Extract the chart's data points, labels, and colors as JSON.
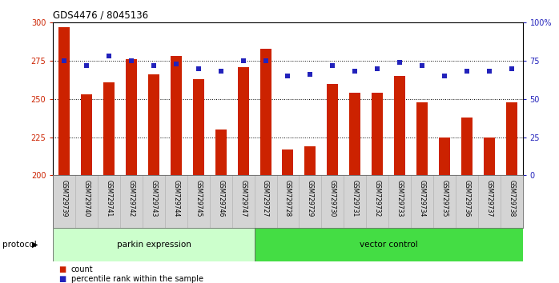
{
  "title": "GDS4476 / 8045136",
  "samples": [
    "GSM729739",
    "GSM729740",
    "GSM729741",
    "GSM729742",
    "GSM729743",
    "GSM729744",
    "GSM729745",
    "GSM729746",
    "GSM729747",
    "GSM729727",
    "GSM729728",
    "GSM729729",
    "GSM729730",
    "GSM729731",
    "GSM729732",
    "GSM729733",
    "GSM729734",
    "GSM729735",
    "GSM729736",
    "GSM729737",
    "GSM729738"
  ],
  "bar_values": [
    297,
    253,
    261,
    276,
    266,
    278,
    263,
    230,
    271,
    283,
    217,
    219,
    260,
    254,
    254,
    265,
    248,
    225,
    238,
    225,
    248
  ],
  "dot_values": [
    75,
    72,
    78,
    75,
    72,
    73,
    70,
    68,
    75,
    75,
    65,
    66,
    72,
    68,
    70,
    74,
    72,
    65,
    68,
    68,
    70
  ],
  "bar_color": "#cc2200",
  "dot_color": "#2222bb",
  "ylim_left": [
    200,
    300
  ],
  "ylim_right": [
    0,
    100
  ],
  "yticks_left": [
    200,
    225,
    250,
    275,
    300
  ],
  "yticks_right": [
    0,
    25,
    50,
    75,
    100
  ],
  "ytick_labels_right": [
    "0",
    "25",
    "50",
    "75",
    "100%"
  ],
  "group1_label": "parkin expression",
  "group2_label": "vector control",
  "group1_color": "#ccffcc",
  "group2_color": "#44dd44",
  "protocol_label": "protocol",
  "legend_count": "count",
  "legend_percentile": "percentile rank within the sample",
  "bg_color": "#d4d4d4",
  "n_group1": 9,
  "n_group2": 12
}
